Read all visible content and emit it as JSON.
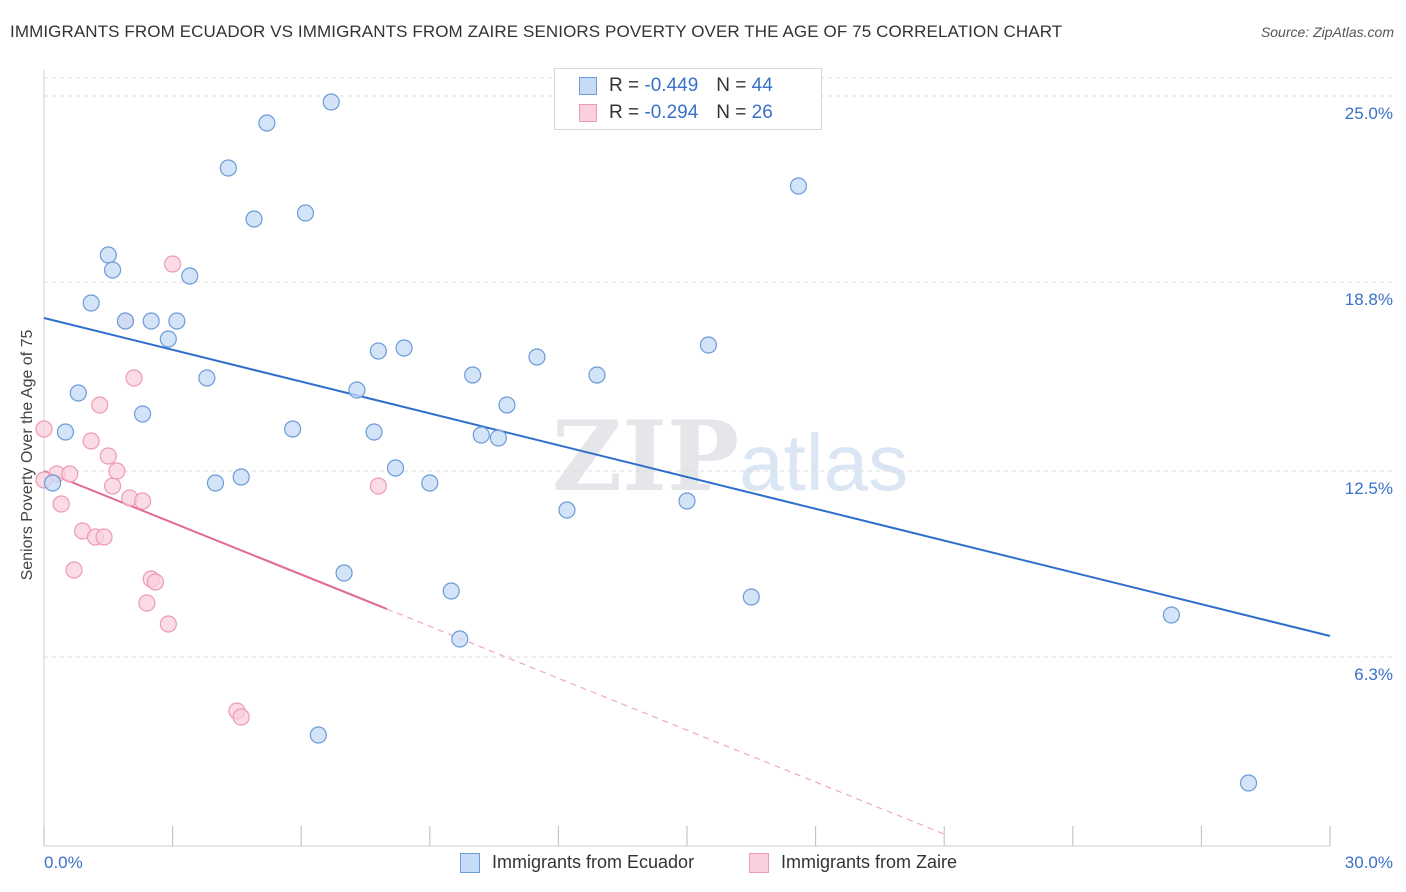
{
  "header": {
    "title": "IMMIGRANTS FROM ECUADOR VS IMMIGRANTS FROM ZAIRE SENIORS POVERTY OVER THE AGE OF 75 CORRELATION CHART",
    "source": "Source: ZipAtlas.com"
  },
  "watermark": {
    "zip": "ZIP",
    "atlas": "atlas"
  },
  "legend": {
    "r_label": "R =",
    "n_label": "N =",
    "rows": [
      {
        "r": "-0.449",
        "n": "44",
        "color": "#a8c8f0"
      },
      {
        "r": "-0.294",
        "n": "26",
        "color": "#f8b8cc"
      }
    ]
  },
  "chart_data": {
    "type": "scatter",
    "title": "IMMIGRANTS FROM ECUADOR VS IMMIGRANTS FROM ZAIRE SENIORS POVERTY OVER THE AGE OF 75 CORRELATION CHART",
    "xlabel": "",
    "ylabel": "Seniors Poverty Over the Age of 75",
    "xlim": [
      0,
      30
    ],
    "ylim": [
      0,
      25.6
    ],
    "x_tick_labels": [
      "0.0%",
      "30.0%"
    ],
    "y_ticks": [
      6.3,
      12.5,
      18.8,
      25.0
    ],
    "y_tick_labels": [
      "6.3%",
      "12.5%",
      "18.8%",
      "25.0%"
    ],
    "grid": true,
    "legend_position": "top-center",
    "series": [
      {
        "name": "Immigrants from Ecuador",
        "color": "#6b9bd8",
        "fill": "#c6dbf5",
        "trend": {
          "x": [
            0,
            30
          ],
          "y": [
            17.6,
            7.0
          ],
          "color": "#2f6fcc"
        },
        "points": [
          [
            0.2,
            12.1
          ],
          [
            0.5,
            13.8
          ],
          [
            0.8,
            15.1
          ],
          [
            1.1,
            18.1
          ],
          [
            1.5,
            19.7
          ],
          [
            1.6,
            19.2
          ],
          [
            1.9,
            17.5
          ],
          [
            2.3,
            14.4
          ],
          [
            2.5,
            17.5
          ],
          [
            2.9,
            16.9
          ],
          [
            3.1,
            17.5
          ],
          [
            3.4,
            19.0
          ],
          [
            3.8,
            15.6
          ],
          [
            4.0,
            12.1
          ],
          [
            4.3,
            22.6
          ],
          [
            4.6,
            12.3
          ],
          [
            4.9,
            20.9
          ],
          [
            5.2,
            24.1
          ],
          [
            5.8,
            13.9
          ],
          [
            6.1,
            21.1
          ],
          [
            6.4,
            3.7
          ],
          [
            6.7,
            24.8
          ],
          [
            7.0,
            9.1
          ],
          [
            7.3,
            15.2
          ],
          [
            7.7,
            13.8
          ],
          [
            7.8,
            16.5
          ],
          [
            8.2,
            12.6
          ],
          [
            8.4,
            16.6
          ],
          [
            9.0,
            12.1
          ],
          [
            9.5,
            8.5
          ],
          [
            9.7,
            6.9
          ],
          [
            10.0,
            15.7
          ],
          [
            10.2,
            13.7
          ],
          [
            10.6,
            13.6
          ],
          [
            10.8,
            14.7
          ],
          [
            11.5,
            16.3
          ],
          [
            12.2,
            11.2
          ],
          [
            12.9,
            15.7
          ],
          [
            15.0,
            11.5
          ],
          [
            15.5,
            16.7
          ],
          [
            16.5,
            8.3
          ],
          [
            17.6,
            22.0
          ],
          [
            26.3,
            7.7
          ],
          [
            28.1,
            2.1
          ]
        ]
      },
      {
        "name": "Immigrants from Zaire",
        "color": "#ee9ab4",
        "fill": "#fad0dc",
        "trend": {
          "x": [
            0,
            8
          ],
          "y": [
            12.5,
            7.9
          ],
          "color": "#e06a92"
        },
        "trend_extension": {
          "x": [
            8,
            21
          ],
          "y": [
            7.9,
            0.4
          ]
        },
        "points": [
          [
            0.0,
            13.9
          ],
          [
            0.3,
            12.4
          ],
          [
            0.4,
            11.4
          ],
          [
            0.6,
            12.4
          ],
          [
            0.7,
            9.2
          ],
          [
            0.9,
            10.5
          ],
          [
            1.1,
            13.5
          ],
          [
            1.2,
            10.3
          ],
          [
            1.3,
            14.7
          ],
          [
            1.4,
            10.3
          ],
          [
            1.5,
            13.0
          ],
          [
            1.6,
            12.0
          ],
          [
            1.7,
            12.5
          ],
          [
            1.9,
            17.5
          ],
          [
            2.0,
            11.6
          ],
          [
            2.1,
            15.6
          ],
          [
            2.3,
            11.5
          ],
          [
            2.4,
            8.1
          ],
          [
            2.5,
            8.9
          ],
          [
            2.6,
            8.8
          ],
          [
            2.9,
            7.4
          ],
          [
            3.0,
            19.4
          ],
          [
            4.5,
            4.5
          ],
          [
            4.6,
            4.3
          ],
          [
            7.8,
            12.0
          ],
          [
            0.0,
            12.2
          ]
        ]
      }
    ]
  },
  "bottom_legend": [
    {
      "label": "Immigrants from Ecuador",
      "color": "#a8c8f0"
    },
    {
      "label": "Immigrants from Zaire",
      "color": "#f8b8cc"
    }
  ]
}
